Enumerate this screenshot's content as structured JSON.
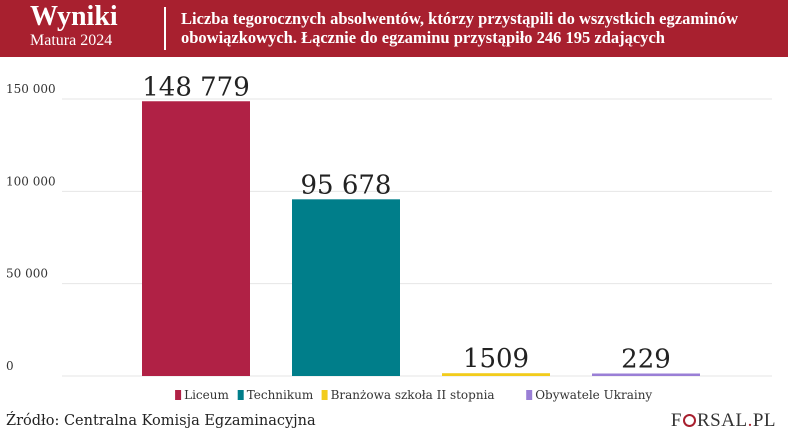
{
  "header": {
    "brand_title": "Wyniki",
    "brand_subtitle": "Matura  2024",
    "title_line1": "Liczba tegorocznych absolwentów, którzy przystąpili do wszystkich egzaminów",
    "title_line2": "obowiązkowych. Łącznie do egzaminu  przystąpiło 246 195 zdających"
  },
  "footer": {
    "source": "Źródło: Centralna Komisja Egzaminacyjna",
    "logo_left": "F",
    "logo_mid": "RSAL",
    "logo_dot": ".",
    "logo_right": "PL"
  },
  "colors": {
    "header_bg": "#a8202f",
    "liceum": "#b02145",
    "technikum": "#007e8a",
    "branzowa": "#f2cc1b",
    "ukraina": "#9a7fd6"
  },
  "chart_data": {
    "type": "bar",
    "categories": [
      "Liceum",
      "Technikum",
      "Branżowa szkoła II stopnia",
      "Obywatele Ukrainy"
    ],
    "values": [
      148779,
      95678,
      1509,
      229
    ],
    "data_labels": [
      "148 779",
      "95 678",
      "1509",
      "229"
    ],
    "colors": [
      "#b02145",
      "#007e8a",
      "#f2cc1b",
      "#9a7fd6"
    ],
    "yticks": [
      0,
      50000,
      100000,
      150000
    ],
    "ytick_labels": [
      "0",
      "50 000",
      "100 000",
      "150 000"
    ],
    "ylim": [
      0,
      160000
    ],
    "legend": [
      "Liceum",
      "Technikum",
      "Branżowa szkoła II stopnia",
      "Obywatele Ukrainy"
    ],
    "legend_position": "bottom",
    "grid": true
  }
}
